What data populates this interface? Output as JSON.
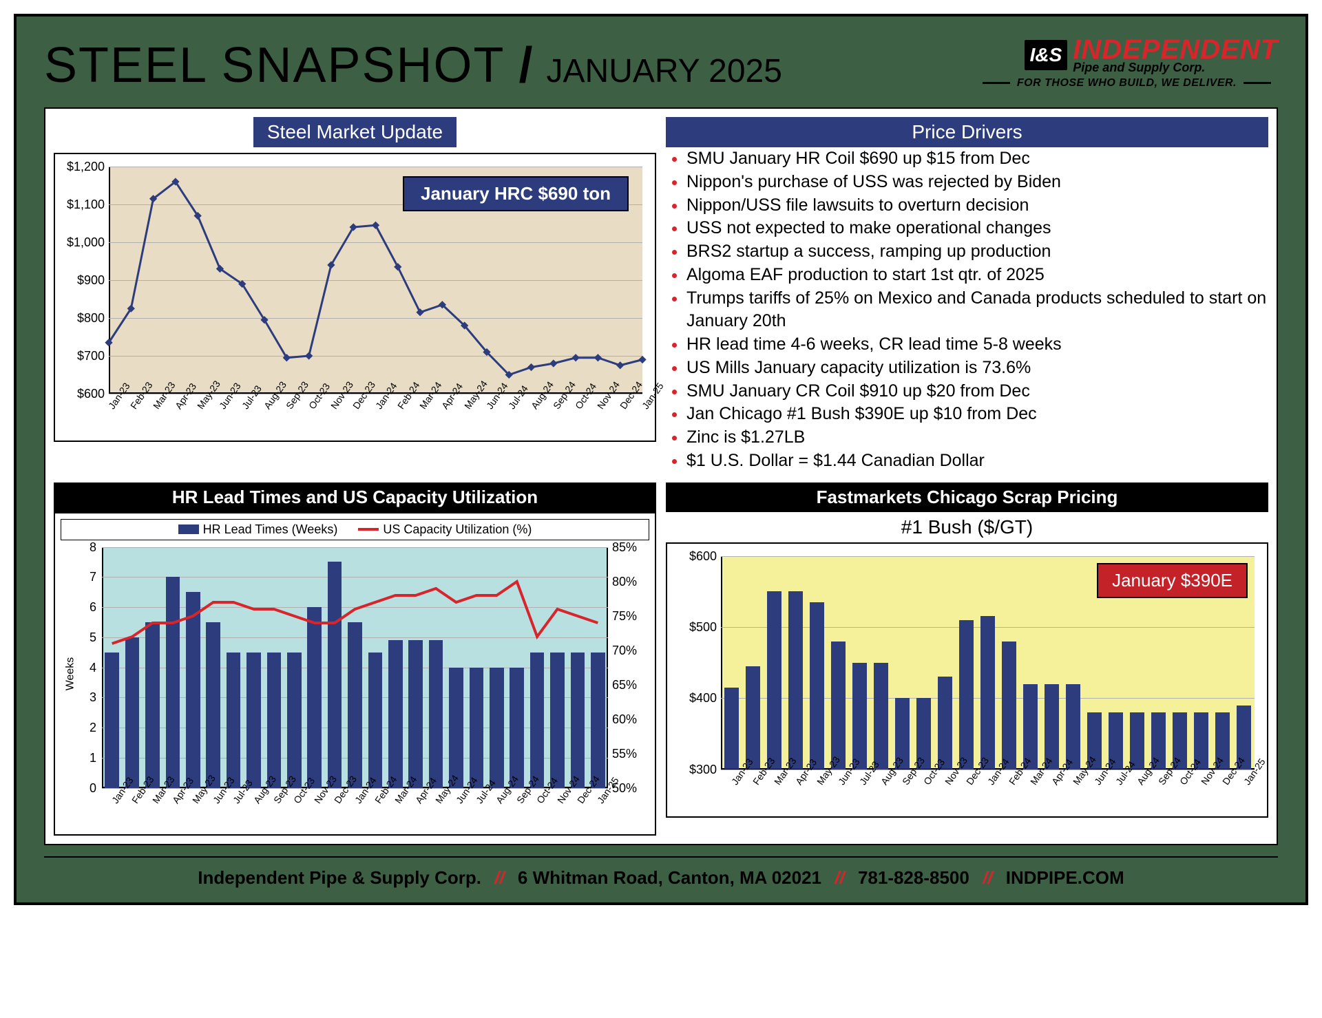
{
  "header": {
    "title": "STEEL SNAPSHOT",
    "subtitle": "JANUARY 2025",
    "logo_box": "I&S",
    "logo_main": "INDEPENDENT",
    "logo_sub": "Pipe and Supply Corp.",
    "tagline": "FOR THOSE WHO BUILD, WE DELIVER."
  },
  "market_chart": {
    "title": "Steel Market Update",
    "callout": "January HRC $690 ton",
    "background_color": "#e8dcc4",
    "line_color": "#2c3c7c",
    "marker_color": "#2c3c7c",
    "grid_color": "#b0b0b0",
    "ylim": [
      600,
      1200
    ],
    "ytick_step": 100,
    "ytick_format": "currency",
    "labels": [
      "Jan-23",
      "Feb-23",
      "Mar-23",
      "Apr-23",
      "May-23",
      "Jun-23",
      "Jul-23",
      "Aug-23",
      "Sep-23",
      "Oct-23",
      "Nov-23",
      "Dec-23",
      "Jan-24",
      "Feb-24",
      "Mar-24",
      "Apr-24",
      "May-24",
      "Jun-24",
      "Jul-24",
      "Aug-24",
      "Sep-24",
      "Oct-24",
      "Nov-24",
      "Dec-24",
      "Jan-25"
    ],
    "values": [
      735,
      825,
      1115,
      1160,
      1070,
      930,
      890,
      795,
      695,
      700,
      940,
      1040,
      1045,
      935,
      815,
      835,
      780,
      710,
      650,
      670,
      680,
      695,
      695,
      675,
      690
    ]
  },
  "drivers": {
    "title": "Price Drivers",
    "items": [
      "SMU January HR Coil $690 up $15 from Dec",
      "Nippon's purchase of USS was rejected by Biden",
      "Nippon/USS file lawsuits to overturn decision",
      "USS not expected to make operational changes",
      "BRS2 startup a success, ramping up production",
      "Algoma EAF production to start 1st qtr. of 2025",
      "Trumps tariffs of 25% on Mexico and Canada products scheduled to start on January 20th",
      "HR lead time 4-6 weeks, CR lead time 5-8 weeks",
      "US Mills January capacity utilization is 73.6%",
      "SMU January CR Coil $910 up $20 from Dec",
      "Jan Chicago #1 Bush $390E up $10 from Dec",
      "Zinc is $1.27LB",
      "$1 U.S. Dollar = $1.44 Canadian Dollar"
    ]
  },
  "lead_chart": {
    "title": "HR Lead Times and US Capacity Utilization",
    "legend_bar": "HR Lead Times (Weeks)",
    "legend_line": "US Capacity Utilization (%)",
    "y_left_title": "Weeks",
    "background_color": "#b8e0e0",
    "bar_color": "#2c3c7c",
    "line_color": "#d8252c",
    "grid_color": "#b0b0b0",
    "y_left_lim": [
      0,
      8
    ],
    "y_left_step": 1,
    "y_right_lim": [
      50,
      85
    ],
    "y_right_step": 5,
    "labels": [
      "Jan-23",
      "Feb-23",
      "Mar-23",
      "Apr-23",
      "May-23",
      "Jun-23",
      "Jul-23",
      "Aug-23",
      "Sep-23",
      "Oct-23",
      "Nov-23",
      "Dec-23",
      "Jan-24",
      "Feb-24",
      "Mar-24",
      "Apr-24",
      "May-24",
      "Jun-24",
      "Jul-24",
      "Aug-24",
      "Sep-24",
      "Oct-24",
      "Nov-24",
      "Dec-24",
      "Jan-25"
    ],
    "bars": [
      4.5,
      5.0,
      5.5,
      7.0,
      6.5,
      5.5,
      4.5,
      4.5,
      4.5,
      4.5,
      6.0,
      7.5,
      5.5,
      4.5,
      4.9,
      4.9,
      4.9,
      4.0,
      4.0,
      4.0,
      4.0,
      4.5,
      4.5,
      4.5,
      4.5
    ],
    "line": [
      71,
      72,
      74,
      74,
      75,
      77,
      77,
      76,
      76,
      75,
      74,
      74,
      76,
      77,
      78,
      78,
      79,
      77,
      78,
      78,
      80,
      72,
      76,
      75,
      74
    ]
  },
  "scrap_chart": {
    "panel_title": "Fastmarkets Chicago Scrap Pricing",
    "chart_title": "#1 Bush ($/GT)",
    "callout": "January $390E",
    "background_color": "#f5f09a",
    "bar_color": "#2c3c7c",
    "grid_color": "#b0b0b0",
    "ylim": [
      300,
      600
    ],
    "ytick_step": 100,
    "ytick_format": "currency",
    "labels": [
      "Jan-23",
      "Feb-23",
      "Mar-23",
      "Apr-23",
      "May-23",
      "Jun-23",
      "Jul-23",
      "Aug-23",
      "Sep-23",
      "Oct-23",
      "Nov-23",
      "Dec-23",
      "Jan-24",
      "Feb-24",
      "Mar-24",
      "Apr-24",
      "May-24",
      "Jun-24",
      "Jul-24",
      "Aug-24",
      "Sep-24",
      "Oct-24",
      "Nov-24",
      "Dec-24",
      "Jan-25"
    ],
    "values": [
      415,
      445,
      550,
      550,
      535,
      480,
      450,
      450,
      400,
      400,
      430,
      510,
      515,
      480,
      420,
      420,
      420,
      380,
      380,
      380,
      380,
      380,
      380,
      380,
      390
    ]
  },
  "footer": {
    "company": "Independent Pipe & Supply Corp.",
    "address": "6 Whitman Road, Canton, MA 02021",
    "phone": "781-828-8500",
    "web": "INDPIPE.COM"
  }
}
